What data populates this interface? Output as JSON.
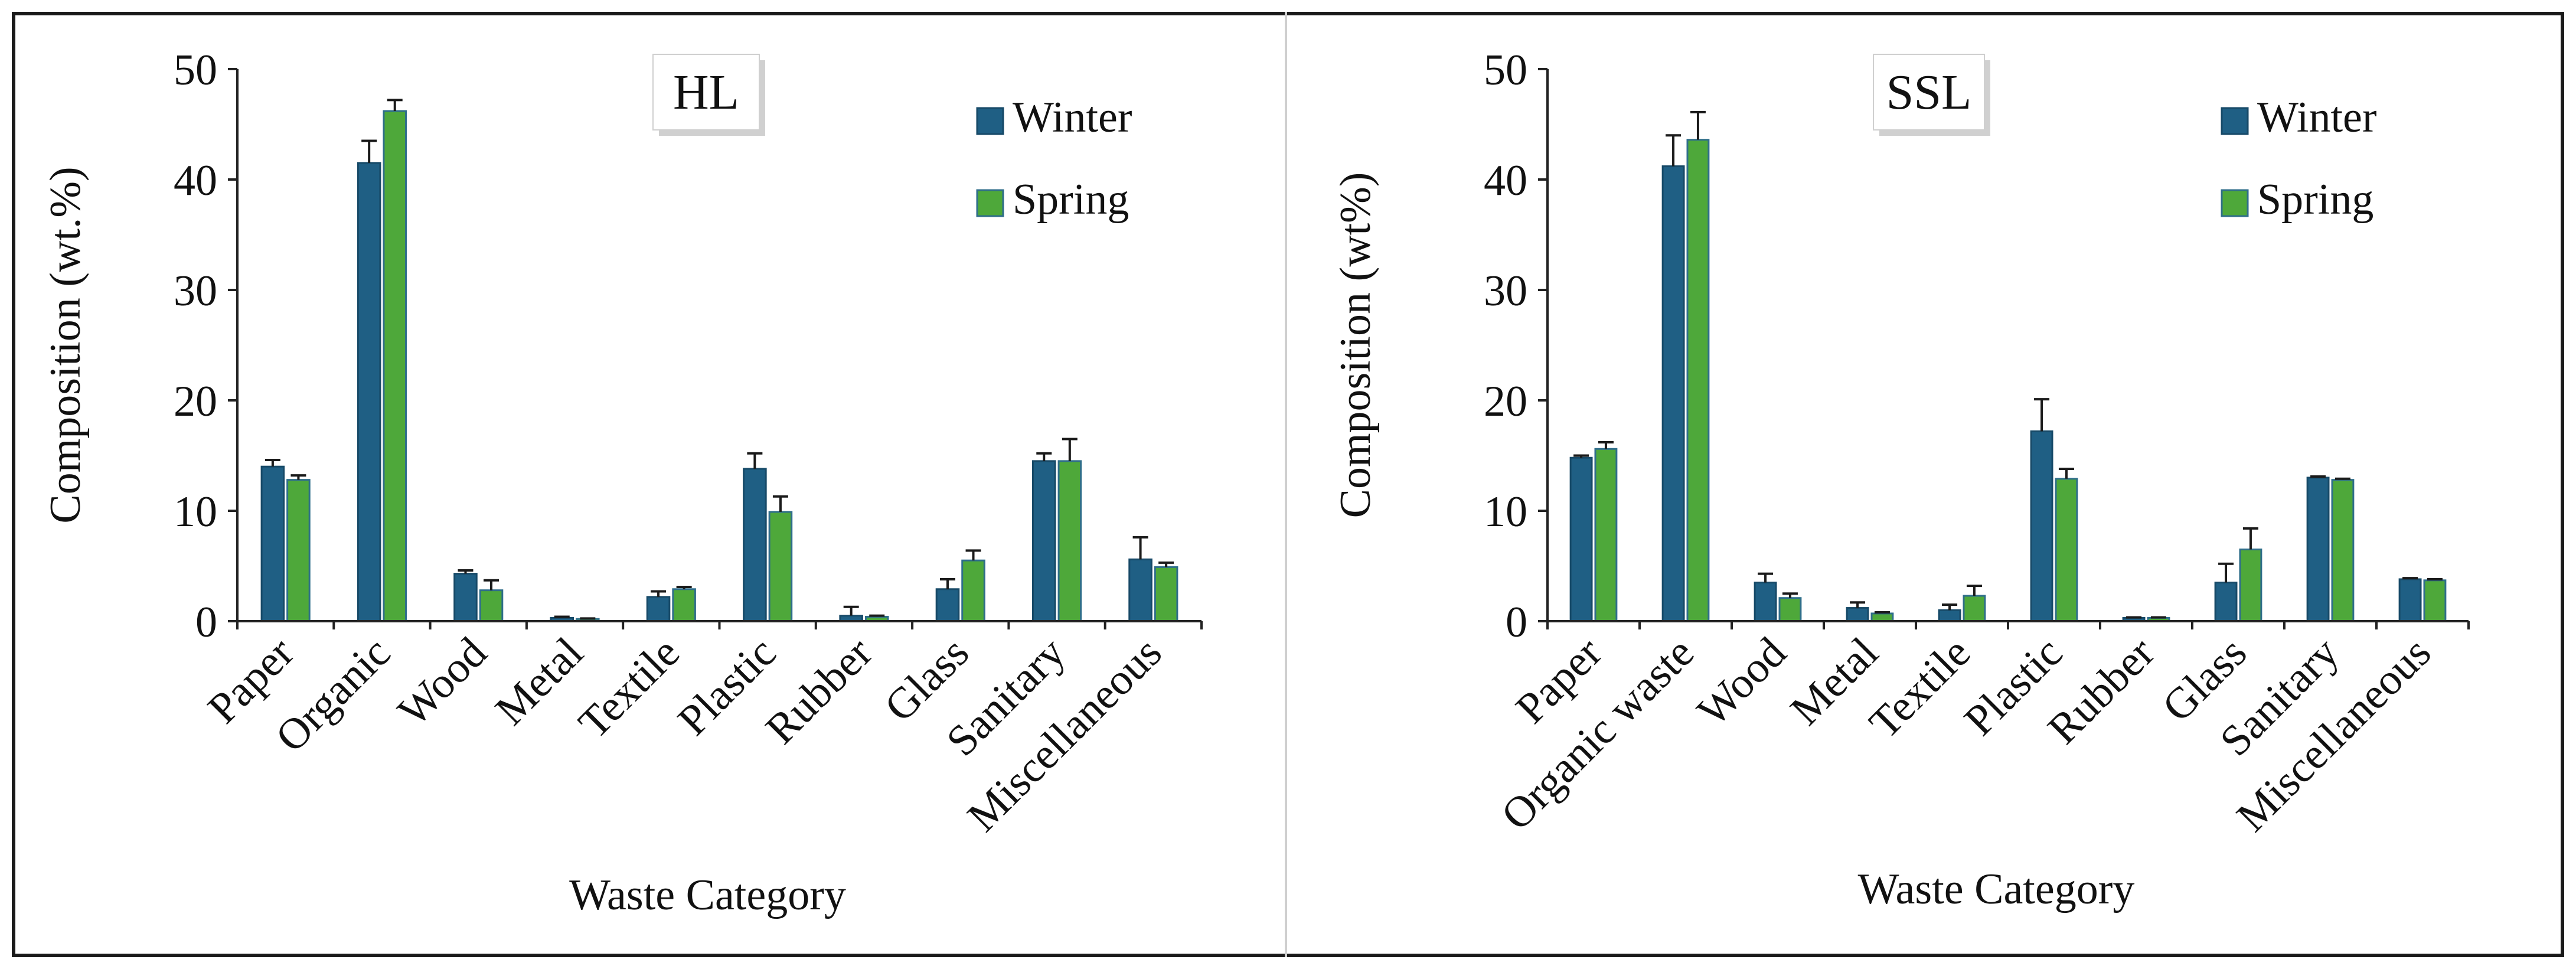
{
  "colors": {
    "winter": "#1F5F84",
    "spring": "#4EA83A",
    "axis": "#222222",
    "error_bar": "#1a1a1a"
  },
  "chart_data": [
    {
      "type": "bar",
      "title": "HL",
      "xlabel": "Waste Category",
      "ylabel": "Composition  (wt.%)",
      "ylim": [
        0,
        50
      ],
      "yticks": [
        "0",
        "10",
        "20",
        "30",
        "40",
        "50"
      ],
      "categories": [
        "Paper",
        "Organic",
        "Wood",
        "Metal",
        "Textile",
        "Plastic",
        "Rubber",
        "Glass",
        "Sanitary",
        "Miscellaneous"
      ],
      "legend_position": "top-right",
      "series": [
        {
          "name": "Winter",
          "values": [
            14.0,
            41.5,
            4.3,
            0.3,
            2.2,
            13.8,
            0.5,
            2.9,
            14.5,
            5.6
          ],
          "errors": [
            0.6,
            2.0,
            0.3,
            0.1,
            0.5,
            1.4,
            0.8,
            0.9,
            0.7,
            2.0
          ]
        },
        {
          "name": "Spring",
          "values": [
            12.8,
            46.2,
            2.8,
            0.2,
            2.9,
            9.9,
            0.4,
            5.5,
            14.5,
            4.9
          ],
          "errors": [
            0.4,
            1.0,
            0.9,
            0.05,
            0.2,
            1.4,
            0.1,
            0.9,
            2.0,
            0.4
          ]
        }
      ]
    },
    {
      "type": "bar",
      "title": "SSL",
      "xlabel": "Waste Category",
      "ylabel": "Composition  (wt%)",
      "ylim": [
        0,
        50
      ],
      "yticks": [
        "0",
        "10",
        "20",
        "30",
        "40",
        "50"
      ],
      "categories": [
        "Paper",
        "Organic waste",
        "Wood",
        "Metal",
        "Textile",
        "Plastic",
        "Rubber",
        "Glass",
        "Sanitary",
        "Miscellaneous"
      ],
      "legend_position": "top-right",
      "series": [
        {
          "name": "Winter",
          "values": [
            14.8,
            41.2,
            3.5,
            1.2,
            1.0,
            17.2,
            0.3,
            3.5,
            13.0,
            3.8
          ],
          "errors": [
            0.2,
            2.8,
            0.8,
            0.5,
            0.5,
            2.9,
            0.05,
            1.7,
            0.1,
            0.1
          ]
        },
        {
          "name": "Spring",
          "values": [
            15.6,
            43.6,
            2.1,
            0.7,
            2.3,
            12.9,
            0.3,
            6.5,
            12.8,
            3.7
          ],
          "errors": [
            0.6,
            2.5,
            0.4,
            0.1,
            0.9,
            0.9,
            0.05,
            1.9,
            0.1,
            0.1
          ]
        }
      ]
    }
  ]
}
